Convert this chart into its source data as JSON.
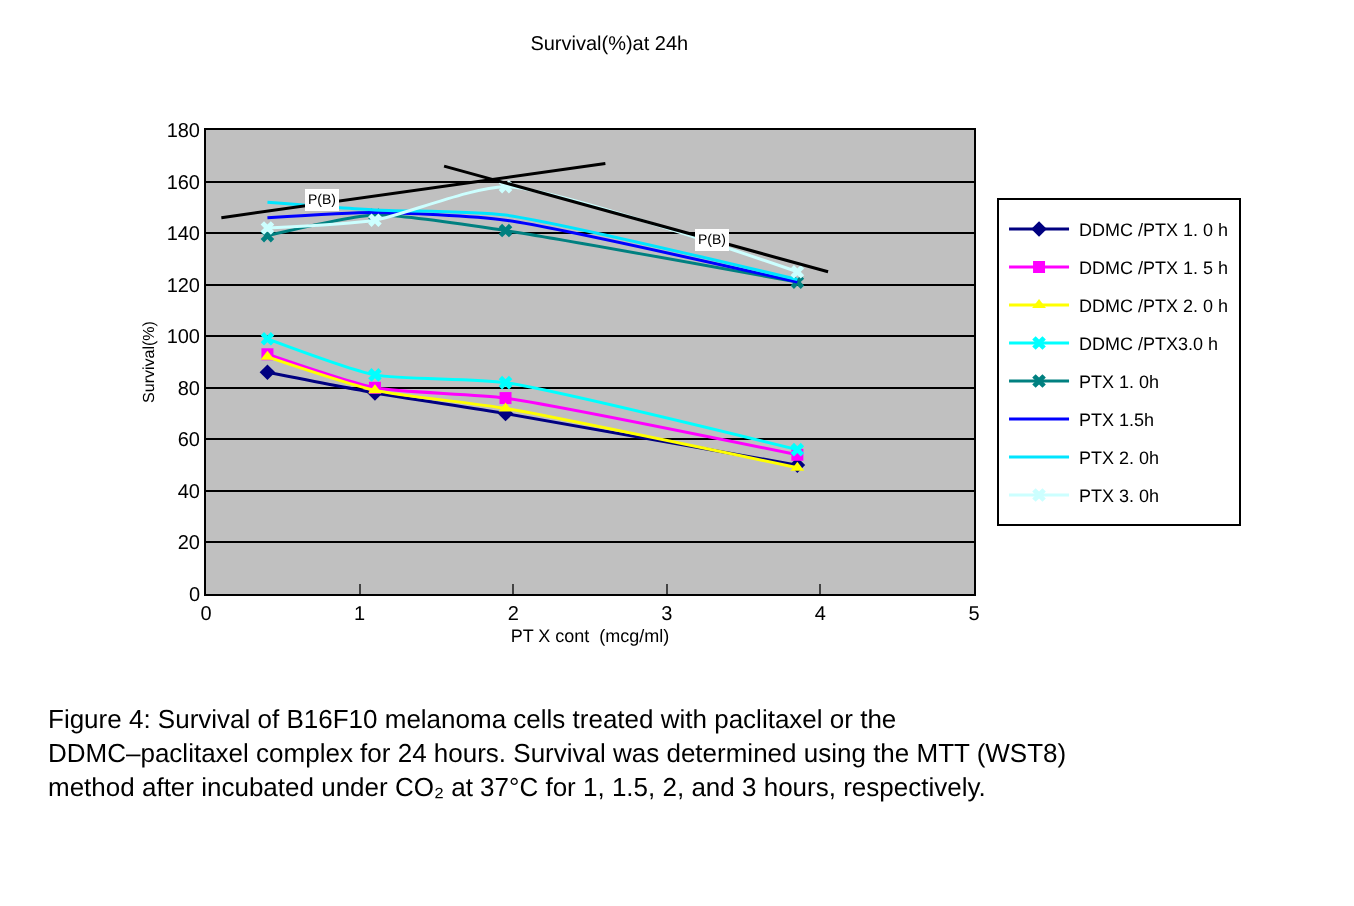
{
  "chart_data": {
    "type": "line",
    "title": "Survival(%)at 24h",
    "xlabel": "PT X cont  (mcg/ml)",
    "ylabel": "Survival(%)",
    "xlim": [
      0,
      5
    ],
    "xticks": [
      0,
      1,
      2,
      3,
      4,
      5
    ],
    "ylim": [
      0,
      180
    ],
    "yticks": [
      0,
      20,
      40,
      60,
      80,
      100,
      120,
      140,
      160,
      180
    ],
    "grid": "y",
    "legend": "right",
    "x": [
      0.4,
      1.1,
      1.95,
      3.85
    ],
    "series": [
      {
        "name": "DDMC /PTX 1. 0 h",
        "color": "#000080",
        "marker": "diamond",
        "values": [
          86,
          78,
          70,
          50
        ]
      },
      {
        "name": "DDMC /PTX 1. 5 h",
        "color": "#ff00ff",
        "marker": "square",
        "values": [
          93,
          80,
          76,
          54
        ]
      },
      {
        "name": "DDMC /PTX 2. 0 h",
        "color": "#ffff00",
        "marker": "triangle",
        "values": [
          92,
          79,
          72,
          49
        ]
      },
      {
        "name": "DDMC /PTX3.0 h",
        "color": "#00ffff",
        "marker": "cross",
        "values": [
          99,
          85,
          82,
          56
        ]
      },
      {
        "name": "PTX 1. 0h",
        "color": "#008080",
        "marker": "cross",
        "values": [
          139,
          147,
          141,
          121
        ]
      },
      {
        "name": "PTX 1.5h",
        "color": "#0000ff",
        "marker": "none",
        "values": [
          146,
          148,
          145,
          121
        ]
      },
      {
        "name": "PTX 2. 0h",
        "color": "#00e5ff",
        "marker": "none",
        "values": [
          152,
          149,
          147,
          122
        ]
      },
      {
        "name": "PTX 3. 0h",
        "color": "#ccffff",
        "marker": "cross",
        "values": [
          142,
          145,
          158,
          125
        ]
      },
      {
        "type": "line",
        "color": "#000000",
        "marker": "none",
        "x": [
          0.1,
          2.6
        ],
        "values": [
          146,
          167
        ]
      },
      {
        "type": "line",
        "color": "#000000",
        "marker": "none",
        "x": [
          1.55,
          4.05
        ],
        "values": [
          166,
          125
        ]
      }
    ],
    "annotations": [
      {
        "text": "P(B)",
        "x": 0.75,
        "y": 153
      },
      {
        "text": "P(B)",
        "x": 3.3,
        "y": 137
      },
      "Figure 4: Survival of B16F10 melanoma cells treated with paclitaxel or the DDMC–paclitaxel complex for 24 hours. Survival was determined using the MTT (WST8) method after incubated under CO₂ at 37°C for 1, 1.5, 2, and 3 hours, respectively."
    ]
  }
}
